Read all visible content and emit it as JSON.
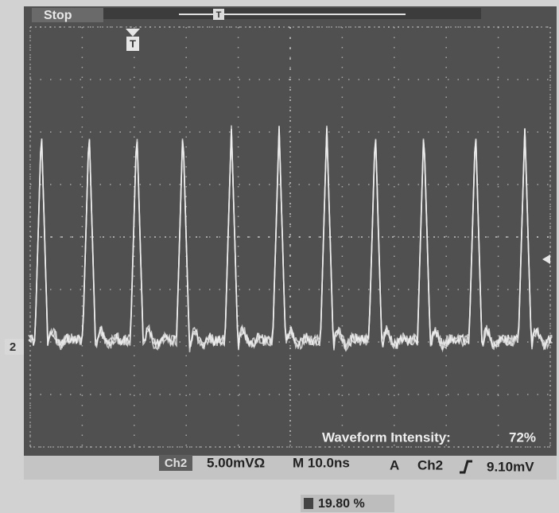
{
  "status": {
    "run_state": "Stop",
    "trigger_position_marker": "T",
    "trigger_marker": "T",
    "channel_marker": "2"
  },
  "overlay": {
    "label": "Waveform Intensity:",
    "value": "72%"
  },
  "readout": {
    "channel": "Ch2",
    "scale": "5.00mVΩ",
    "timebase": "M 10.0ns",
    "trigger_mode": "A",
    "trigger_source": "Ch2",
    "trigger_level": "9.10mV"
  },
  "footer": {
    "position": "19.80 %"
  }
}
